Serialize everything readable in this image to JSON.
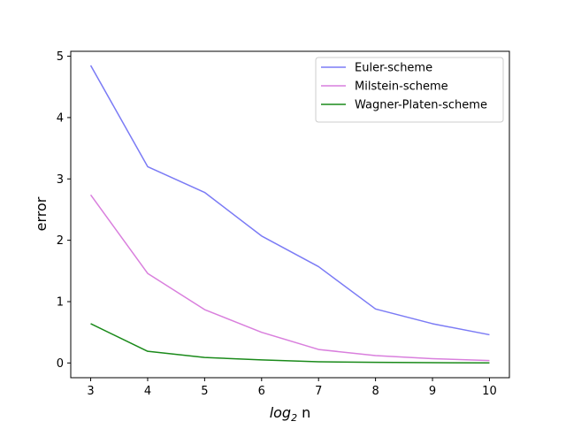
{
  "chart_data": {
    "type": "line",
    "title": "",
    "xlabel_base": "log",
    "xlabel_sub": "2",
    "xlabel_suffix": " n",
    "ylabel": "error",
    "x": [
      3,
      4,
      5,
      6,
      7,
      8,
      9,
      10
    ],
    "xlim": [
      2.65,
      10.35
    ],
    "ylim": [
      -0.24,
      5.08
    ],
    "xticks": [
      3,
      4,
      5,
      6,
      7,
      8,
      9,
      10
    ],
    "yticks": [
      0,
      1,
      2,
      3,
      4,
      5
    ],
    "grid": false,
    "legend_position": "top-right",
    "series": [
      {
        "name": "Euler-scheme",
        "color": "#7b7bf5",
        "values": [
          4.85,
          3.2,
          2.78,
          2.07,
          1.57,
          0.88,
          0.64,
          0.46
        ]
      },
      {
        "name": "Milstein-scheme",
        "color": "#d97fdd",
        "values": [
          2.74,
          1.46,
          0.87,
          0.5,
          0.22,
          0.12,
          0.07,
          0.04
        ]
      },
      {
        "name": "Wagner-Platen-scheme",
        "color": "#1a8a1a",
        "values": [
          0.64,
          0.19,
          0.09,
          0.05,
          0.02,
          0.01,
          0.005,
          0.002
        ]
      }
    ]
  }
}
